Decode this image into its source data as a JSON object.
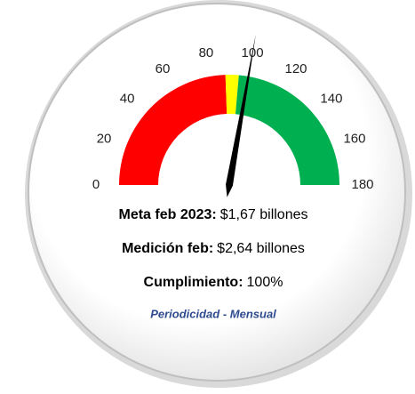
{
  "chart_data": {
    "type": "gauge",
    "range": [
      0,
      180
    ],
    "ticks": [
      0,
      20,
      40,
      60,
      80,
      100,
      120,
      140,
      160,
      180
    ],
    "bands": [
      {
        "from": 0,
        "to": 88,
        "color": "#ff0000"
      },
      {
        "from": 88,
        "to": 95,
        "color": "#ffff00"
      },
      {
        "from": 95,
        "to": 180,
        "color": "#00b050"
      }
    ],
    "value": 100,
    "needle_color": "#000000",
    "info": [
      {
        "label": "Meta feb 2023:",
        "text": "$1,67 billones"
      },
      {
        "label": "Medición feb:",
        "text": "$2,64 billones"
      },
      {
        "label": "Cumplimiento:",
        "text": "100%"
      }
    ],
    "footnote": "Periodicidad - Mensual"
  }
}
